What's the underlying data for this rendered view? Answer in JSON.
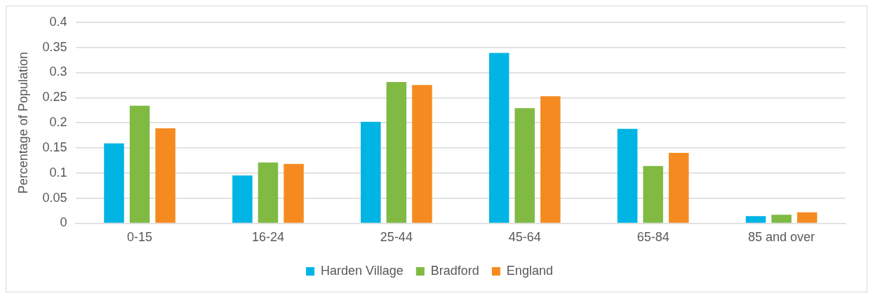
{
  "chart_data": {
    "type": "bar",
    "ylabel": "Percentage of Population",
    "categories": [
      "0-15",
      "16-24",
      "25-44",
      "45-64",
      "65-84",
      "85 and over"
    ],
    "series": [
      {
        "name": "Harden Village",
        "color": "#00b4e4",
        "values": [
          0.159,
          0.095,
          0.202,
          0.339,
          0.188,
          0.014
        ]
      },
      {
        "name": "Bradford",
        "color": "#80ba43",
        "values": [
          0.234,
          0.121,
          0.281,
          0.229,
          0.114,
          0.017
        ]
      },
      {
        "name": "England",
        "color": "#f58b20",
        "values": [
          0.189,
          0.118,
          0.275,
          0.253,
          0.14,
          0.022
        ]
      }
    ],
    "ylim": [
      0,
      0.4
    ],
    "yticks": [
      0,
      0.05,
      0.1,
      0.15,
      0.2,
      0.25,
      0.3,
      0.35,
      0.4
    ],
    "grid": "y",
    "legend": "bottom"
  }
}
